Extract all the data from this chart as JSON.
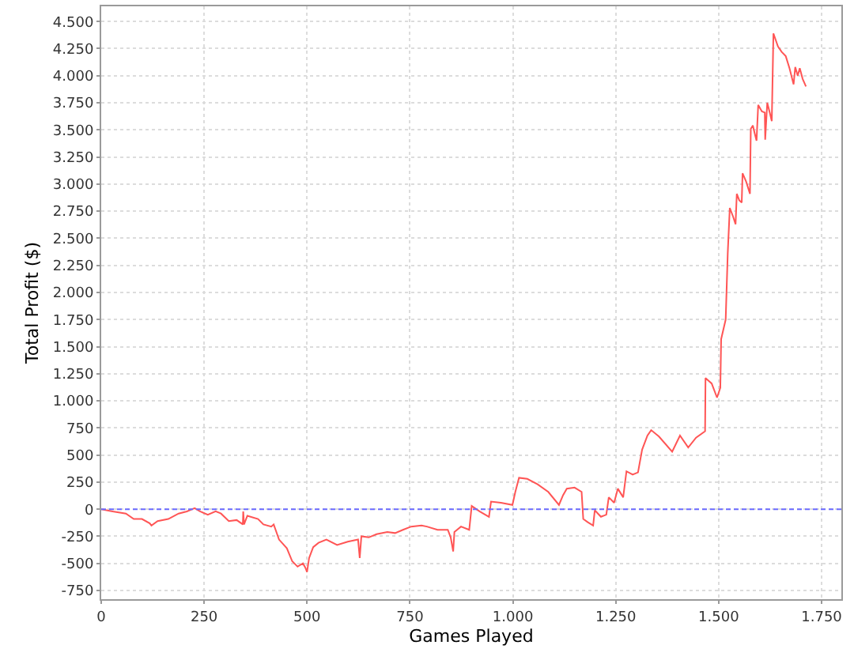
{
  "chart_data": {
    "type": "line",
    "xlabel": "Games Played",
    "ylabel": "Total Profit ($)",
    "xlim": [
      0,
      1798
    ],
    "ylim": [
      -830,
      4640
    ],
    "xticks": [
      0,
      250,
      500,
      750,
      {
        "value": 1000,
        "label": "1.000"
      },
      {
        "value": 1250,
        "label": "1.250"
      },
      {
        "value": 1500,
        "label": "1.500"
      },
      {
        "value": 1750,
        "label": "1.750"
      }
    ],
    "yticks": [
      -750,
      -500,
      -250,
      0,
      250,
      500,
      750,
      {
        "value": 1000,
        "label": "1.000"
      },
      {
        "value": 1250,
        "label": "1.250"
      },
      {
        "value": 1500,
        "label": "1.500"
      },
      {
        "value": 1750,
        "label": "1.750"
      },
      {
        "value": 2000,
        "label": "2.000"
      },
      {
        "value": 2250,
        "label": "2.250"
      },
      {
        "value": 2500,
        "label": "2.500"
      },
      {
        "value": 2750,
        "label": "2.750"
      },
      {
        "value": 3000,
        "label": "3.000"
      },
      {
        "value": 3250,
        "label": "3.250"
      },
      {
        "value": 3500,
        "label": "3.500"
      },
      {
        "value": 3750,
        "label": "3.750"
      },
      {
        "value": 4000,
        "label": "4.000"
      },
      {
        "value": 4250,
        "label": "4.250"
      },
      {
        "value": 4500,
        "label": "4.500"
      }
    ],
    "grid": true,
    "marker": "none",
    "line_style": "solid",
    "ref_lines": [
      {
        "axis": "y",
        "value": 0,
        "color": "#6b6bff",
        "line_style": "dashed"
      }
    ],
    "series": [
      {
        "color": "#ff5555",
        "x": [
          0,
          28,
          60,
          79,
          99,
          118,
          122,
          137,
          163,
          188,
          208,
          227,
          240,
          259,
          278,
          291,
          310,
          329,
          344,
          345,
          347,
          355,
          381,
          394,
          413,
          419,
          432,
          451,
          464,
          477,
          490,
          496,
          500,
          505,
          515,
          528,
          547,
          573,
          599,
          624,
          628,
          632,
          650,
          669,
          695,
          714,
          733,
          753,
          778,
          791,
          817,
          842,
          849,
          855,
          858,
          874,
          894,
          900,
          919,
          942,
          947,
          971,
          999,
          1006,
          1015,
          1035,
          1060,
          1086,
          1112,
          1122,
          1131,
          1150,
          1167,
          1171,
          1182,
          1195,
          1199,
          1214,
          1227,
          1233,
          1246,
          1255,
          1268,
          1276,
          1291,
          1304,
          1314,
          1327,
          1336,
          1355,
          1387,
          1406,
          1426,
          1445,
          1467,
          1468,
          1483,
          1496,
          1504,
          1506,
          1517,
          1522,
          1527,
          1535,
          1541,
          1544,
          1550,
          1556,
          1558,
          1567,
          1576,
          1578,
          1583,
          1588,
          1592,
          1596,
          1605,
          1612,
          1613,
          1618,
          1624,
          1629,
          1633,
          1644,
          1653,
          1663,
          1672,
          1682,
          1686,
          1692,
          1697,
          1704,
          1712
        ],
        "values": [
          0,
          -20,
          -40,
          -90,
          -90,
          -130,
          -150,
          -110,
          -90,
          -40,
          -20,
          10,
          -20,
          -50,
          -20,
          -40,
          -110,
          -100,
          -140,
          -20,
          -140,
          -60,
          -90,
          -140,
          -160,
          -140,
          -280,
          -360,
          -480,
          -530,
          -500,
          -540,
          -580,
          -450,
          -350,
          -310,
          -280,
          -330,
          -300,
          -280,
          -450,
          -250,
          -260,
          -230,
          -210,
          -220,
          -190,
          -160,
          -150,
          -160,
          -190,
          -190,
          -260,
          -390,
          -210,
          -160,
          -190,
          30,
          -20,
          -70,
          70,
          60,
          40,
          160,
          290,
          280,
          230,
          160,
          40,
          130,
          190,
          200,
          160,
          -90,
          -120,
          -150,
          -10,
          -70,
          -50,
          110,
          60,
          190,
          110,
          350,
          320,
          340,
          550,
          680,
          730,
          670,
          530,
          680,
          570,
          660,
          720,
          1210,
          1160,
          1030,
          1120,
          1570,
          1750,
          2360,
          2780,
          2700,
          2630,
          2910,
          2850,
          2830,
          3100,
          3020,
          2910,
          3510,
          3540,
          3460,
          3400,
          3730,
          3670,
          3660,
          3410,
          3750,
          3660,
          3580,
          4390,
          4270,
          4220,
          4180,
          4070,
          3920,
          4080,
          4000,
          4070,
          3970,
          3900
        ]
      }
    ]
  }
}
